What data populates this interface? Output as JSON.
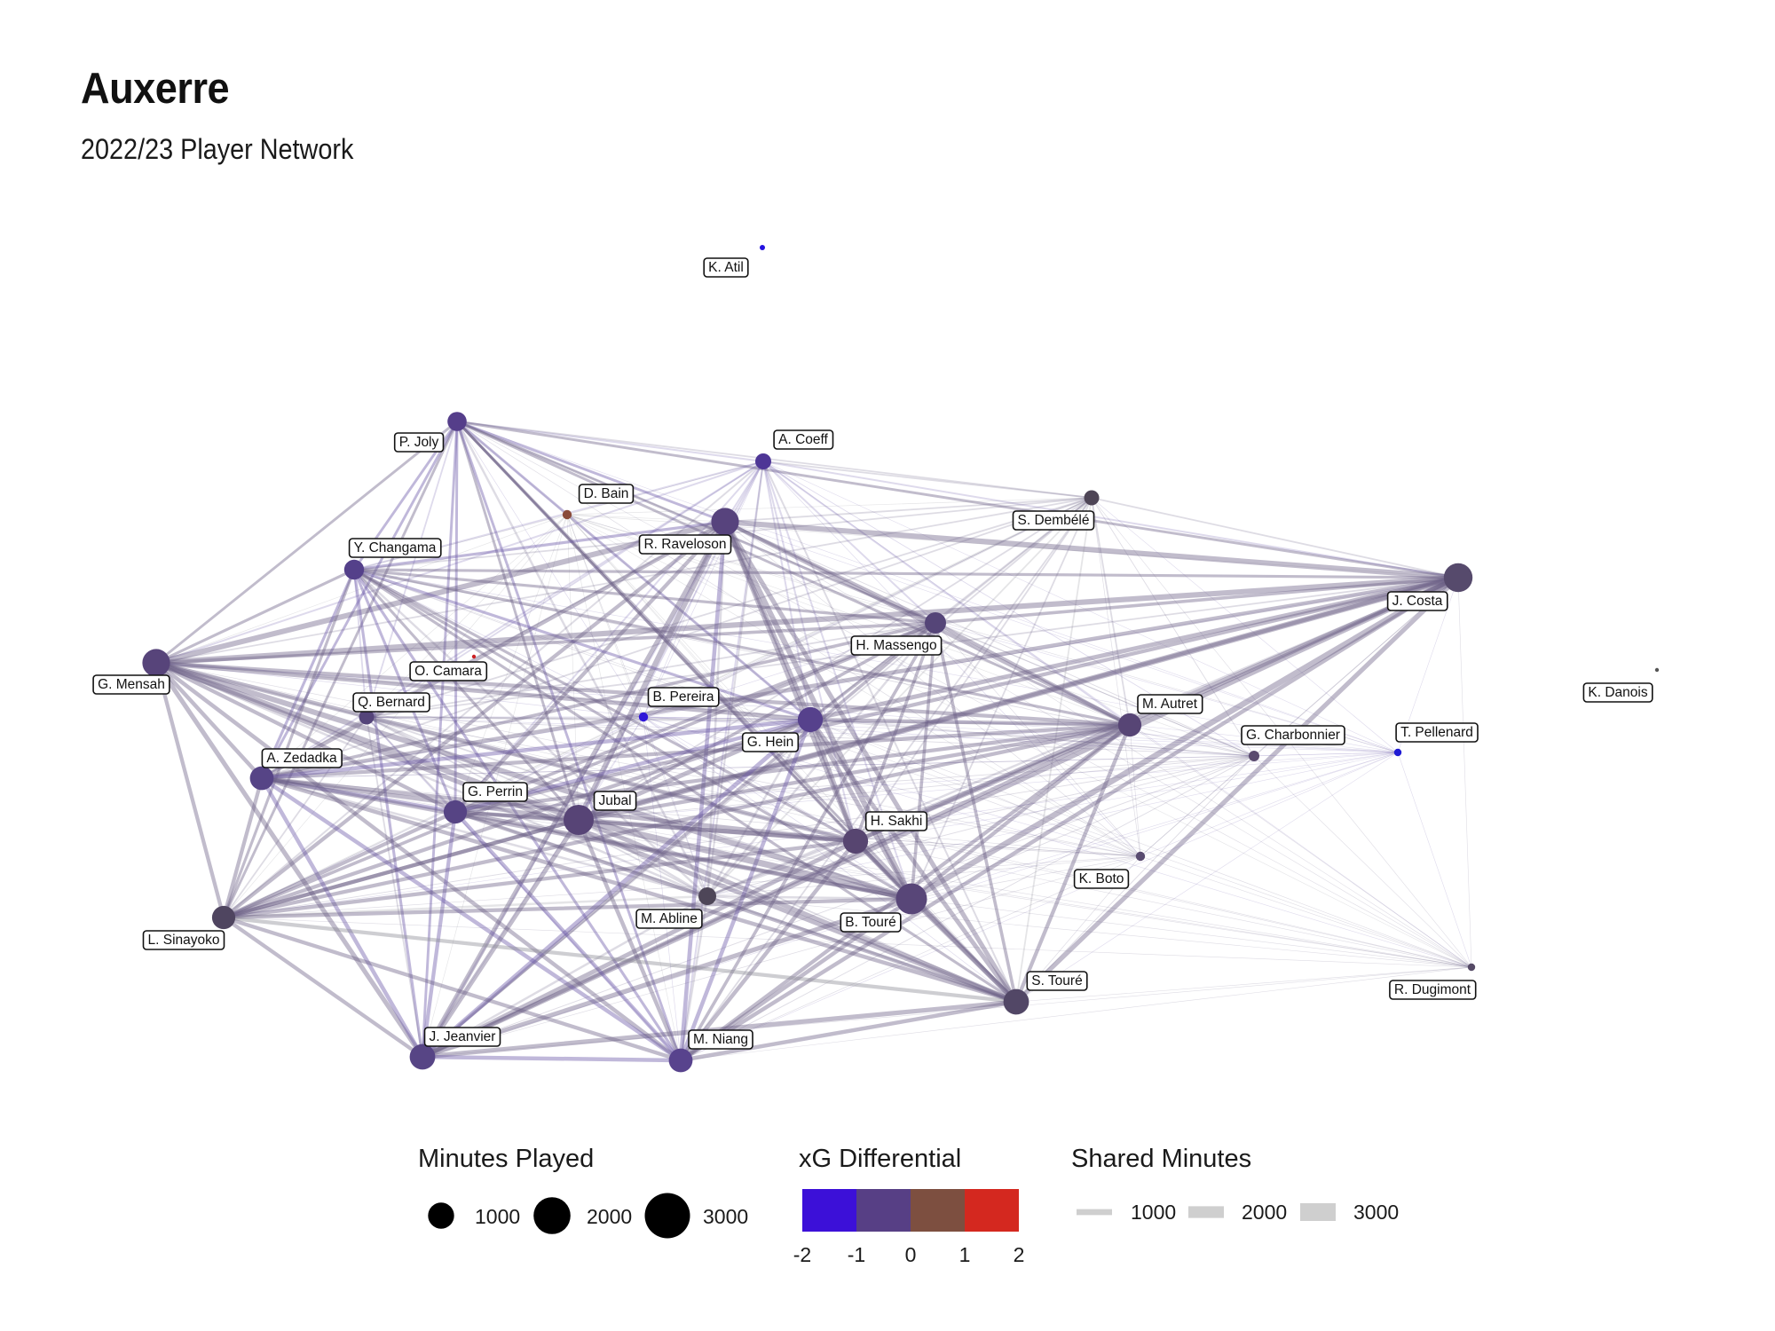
{
  "title": "Auxerre",
  "subtitle": "2022/23 Player Network",
  "colors": {
    "neg2": "#3c10d8",
    "neg1": "#573f85",
    "zero": "#7d4f40",
    "pos1": "#d4281f",
    "edge_gray": "#a9a6ab",
    "node_default": "#4d3f6b"
  },
  "nodes": [
    {
      "name": "K. Atil",
      "minutes": 100,
      "xg": -2.0,
      "color": "#2412e0"
    },
    {
      "name": "P. Joly",
      "minutes": 1300,
      "xg": -0.9,
      "color": "#553e8a"
    },
    {
      "name": "A. Coeff",
      "minutes": 900,
      "xg": -1.1,
      "color": "#4e3696"
    },
    {
      "name": "D. Bain",
      "minutes": 300,
      "xg": 0.5,
      "color": "#8a4a3a"
    },
    {
      "name": "R. Raveloson",
      "minutes": 2700,
      "xg": -0.7,
      "color": "#57437d"
    },
    {
      "name": "S. Dembélé",
      "minutes": 800,
      "xg": -0.3,
      "color": "#4e4556"
    },
    {
      "name": "Y. Changama",
      "minutes": 1400,
      "xg": -0.9,
      "color": "#54408a"
    },
    {
      "name": "J. Costa",
      "minutes": 2900,
      "xg": -0.5,
      "color": "#564a6c"
    },
    {
      "name": "H. Massengo",
      "minutes": 1600,
      "xg": -0.6,
      "color": "#554578"
    },
    {
      "name": "G. Mensah",
      "minutes": 2700,
      "xg": -0.6,
      "color": "#57447a"
    },
    {
      "name": "O. Camara",
      "minutes": 50,
      "xg": 1.8,
      "color": "#cc1f22"
    },
    {
      "name": "Q. Bernard",
      "minutes": 800,
      "xg": -0.7,
      "color": "#54447a"
    },
    {
      "name": "B. Pereira",
      "minutes": 300,
      "xg": -1.8,
      "color": "#3018d8"
    },
    {
      "name": "K. Danois",
      "minutes": 10,
      "xg": -0.2,
      "color": "#555555"
    },
    {
      "name": "M. Autret",
      "minutes": 1900,
      "xg": -0.6,
      "color": "#574575"
    },
    {
      "name": "G. Hein",
      "minutes": 2200,
      "xg": -0.8,
      "color": "#56418c"
    },
    {
      "name": "G. Charbonnier",
      "minutes": 400,
      "xg": -0.6,
      "color": "#5a4a6e"
    },
    {
      "name": "T. Pellenard",
      "minutes": 200,
      "xg": -1.9,
      "color": "#1f1ad4"
    },
    {
      "name": "A. Zedadka",
      "minutes": 2000,
      "xg": -0.8,
      "color": "#564486"
    },
    {
      "name": "G. Perrin",
      "minutes": 1900,
      "xg": -0.8,
      "color": "#564484"
    },
    {
      "name": "Jubal",
      "minutes": 3200,
      "xg": -0.6,
      "color": "#574476"
    },
    {
      "name": "H. Sakhi",
      "minutes": 2200,
      "xg": -0.5,
      "color": "#574570"
    },
    {
      "name": "K. Boto",
      "minutes": 300,
      "xg": -0.5,
      "color": "#594b70"
    },
    {
      "name": "M. Abline",
      "minutes": 1100,
      "xg": -0.4,
      "color": "#4e4658"
    },
    {
      "name": "B. Touré",
      "minutes": 3400,
      "xg": -0.6,
      "color": "#584678"
    },
    {
      "name": "L. Sinayoko",
      "minutes": 1900,
      "xg": -0.3,
      "color": "#4f4560"
    },
    {
      "name": "S. Touré",
      "minutes": 2300,
      "xg": -0.4,
      "color": "#524766"
    },
    {
      "name": "R. Dugimont",
      "minutes": 200,
      "xg": -0.5,
      "color": "#554a66"
    },
    {
      "name": "J. Jeanvier",
      "minutes": 2300,
      "xg": -0.8,
      "color": "#574585"
    },
    {
      "name": "M. Niang",
      "minutes": 2000,
      "xg": -0.9,
      "color": "#58438d"
    }
  ],
  "legend": {
    "minutes": {
      "title": "Minutes Played",
      "items": [
        {
          "label": "1000",
          "value": 1000
        },
        {
          "label": "2000",
          "value": 2000
        },
        {
          "label": "3000",
          "value": 3000
        }
      ]
    },
    "xg": {
      "title": "xG Differential",
      "ticks": [
        "-2",
        "-1",
        "0",
        "1",
        "2"
      ],
      "blocks": [
        "#3c10d8",
        "#573f85",
        "#7d4f40",
        "#d4281f"
      ]
    },
    "shared": {
      "title": "Shared Minutes",
      "items": [
        {
          "label": "1000",
          "value": 1000
        },
        {
          "label": "2000",
          "value": 2000
        },
        {
          "label": "3000",
          "value": 3000
        }
      ]
    }
  }
}
